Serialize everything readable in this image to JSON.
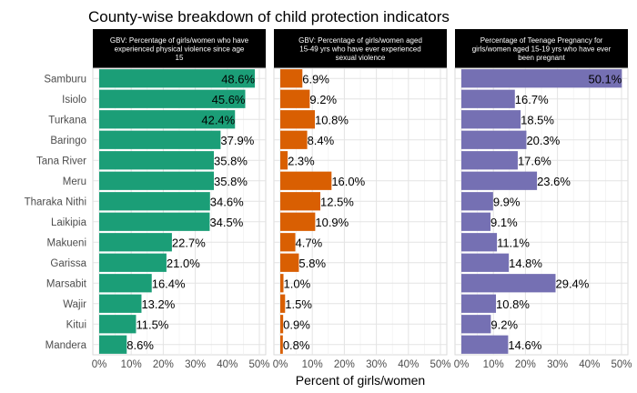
{
  "chart_data": {
    "type": "bar",
    "orientation": "horizontal",
    "title": "County-wise breakdown of child protection indicators",
    "xlabel": "Percent of girls/women",
    "ylabel": "",
    "xlim": [
      0,
      50
    ],
    "x_ticks": [
      "0%",
      "10%",
      "20%",
      "30%",
      "40%",
      "50%"
    ],
    "grid": true,
    "categories": [
      "Samburu",
      "Isiolo",
      "Turkana",
      "Baringo",
      "Tana River",
      "Meru",
      "Tharaka Nithi",
      "Laikipia",
      "Makueni",
      "Garissa",
      "Marsabit",
      "Wajir",
      "Kitui",
      "Mandera"
    ],
    "series": [
      {
        "name": "GBV: Percentage of girls/women who have experienced physical violence since age 15",
        "strip_lines": [
          "GBV: Percentage of girls/women who have",
          "experienced physical violence since age",
          "15"
        ],
        "color": "#1b9e77",
        "values": [
          48.6,
          45.6,
          42.4,
          37.9,
          35.8,
          35.8,
          34.6,
          34.5,
          22.7,
          21.0,
          16.4,
          13.2,
          11.5,
          8.6
        ],
        "labels": [
          "48.6%",
          "45.6%",
          "42.4%",
          "37.9%",
          "35.8%",
          "35.8%",
          "34.6%",
          "34.5%",
          "22.7%",
          "21.0%",
          "16.4%",
          "13.2%",
          "11.5%",
          "8.6%"
        ]
      },
      {
        "name": "GBV: Percentage of girls/women aged 15-49 yrs who have ever experienced sexual violence",
        "strip_lines": [
          "GBV: Percentage of girls/women aged",
          "15-49 yrs who have ever experienced",
          "sexual violence"
        ],
        "color": "#d95f02",
        "values": [
          6.9,
          9.2,
          10.8,
          8.4,
          2.3,
          16.0,
          12.5,
          10.9,
          4.7,
          5.8,
          1.0,
          1.5,
          0.9,
          0.8
        ],
        "labels": [
          "6.9%",
          "9.2%",
          "10.8%",
          "8.4%",
          "2.3%",
          "16.0%",
          "12.5%",
          "10.9%",
          "4.7%",
          "5.8%",
          "1.0%",
          "1.5%",
          "0.9%",
          "0.8%"
        ]
      },
      {
        "name": "Percentage of Teenage Pregnancy for girls/women aged 15-19 yrs who have ever been pregnant",
        "strip_lines": [
          "Percentage of Teenage Pregnancy for",
          "girls/women aged 15-19 yrs who have ever",
          "been pregnant"
        ],
        "color": "#7570b3",
        "values": [
          50.1,
          16.7,
          18.5,
          20.3,
          17.6,
          23.6,
          9.9,
          9.1,
          11.1,
          14.8,
          29.4,
          10.8,
          9.2,
          14.6
        ],
        "labels": [
          "50.1%",
          "16.7%",
          "18.5%",
          "20.3%",
          "17.6%",
          "23.6%",
          "9.9%",
          "9.1%",
          "11.1%",
          "14.8%",
          "29.4%",
          "10.8%",
          "9.2%",
          "14.6%"
        ]
      }
    ]
  }
}
